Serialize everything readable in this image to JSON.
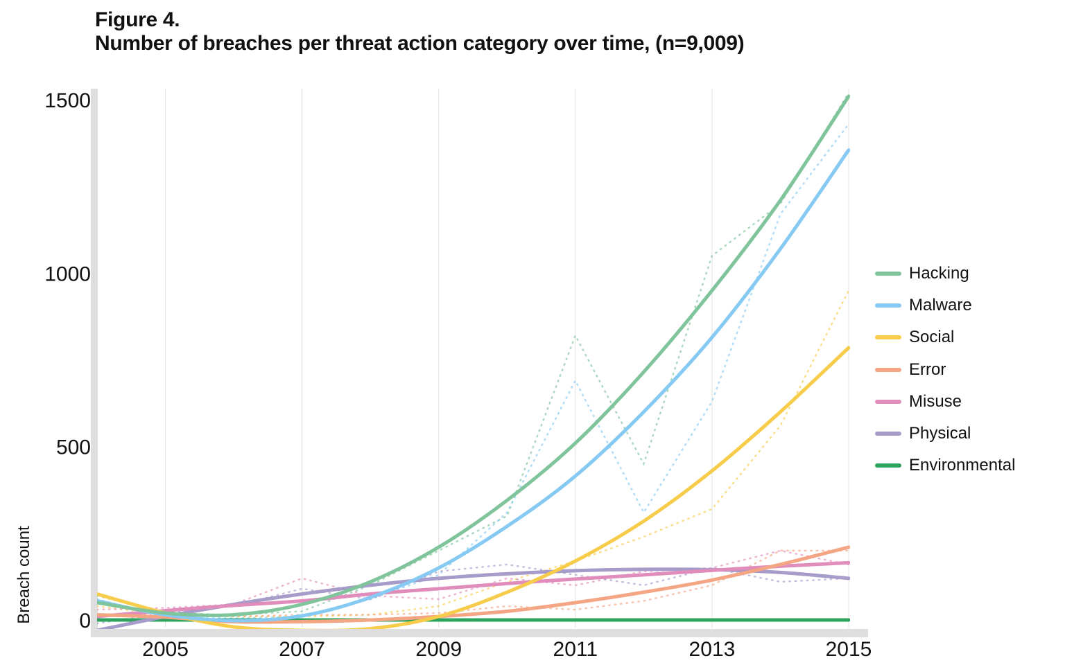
{
  "header": {
    "figure_label": "Figure 4.",
    "title": "Number of breaches per threat action category over time, (n=9,009)"
  },
  "chart_data": {
    "type": "line",
    "title": "Number of breaches per threat action category over time, (n=9,009)",
    "xlabel": "",
    "ylabel": "Breach count",
    "xlim": [
      2004,
      2015
    ],
    "ylim": [
      -30,
      1530
    ],
    "x_ticks": [
      2005,
      2007,
      2009,
      2011,
      2013,
      2015
    ],
    "y_ticks": [
      0,
      500,
      1000,
      1500
    ],
    "grid": "vertical",
    "legend_position": "right",
    "x": [
      2004,
      2005,
      2006,
      2007,
      2008,
      2009,
      2010,
      2011,
      2012,
      2013,
      2014,
      2015
    ],
    "series": [
      {
        "name": "Hacking",
        "color": "#7fc49b",
        "trend": [
          50,
          20,
          15,
          45,
          110,
          210,
          345,
          510,
          715,
          950,
          1210,
          1510
        ],
        "values": [
          70,
          20,
          15,
          25,
          100,
          200,
          300,
          820,
          450,
          1050,
          1200,
          1520
        ]
      },
      {
        "name": "Malware",
        "color": "#86c9f2",
        "trend": [
          55,
          15,
          -2,
          12,
          65,
          150,
          270,
          415,
          600,
          815,
          1070,
          1355
        ],
        "values": [
          60,
          10,
          5,
          10,
          60,
          130,
          310,
          690,
          310,
          630,
          1170,
          1430
        ]
      },
      {
        "name": "Social",
        "color": "#f7cc4a",
        "trend": [
          75,
          20,
          -20,
          -30,
          -25,
          10,
          80,
          170,
          285,
          430,
          600,
          785
        ],
        "values": [
          40,
          15,
          10,
          10,
          15,
          40,
          110,
          170,
          240,
          320,
          560,
          950
        ]
      },
      {
        "name": "Error",
        "color": "#f4a584",
        "trend": [
          15,
          8,
          -5,
          -5,
          0,
          10,
          25,
          50,
          80,
          115,
          160,
          210
        ],
        "values": [
          10,
          20,
          10,
          15,
          15,
          20,
          40,
          30,
          55,
          100,
          200,
          200
        ]
      },
      {
        "name": "Misuse",
        "color": "#e08dbb",
        "trend": [
          10,
          27,
          42,
          55,
          75,
          90,
          105,
          118,
          130,
          143,
          155,
          165
        ],
        "values": [
          30,
          35,
          45,
          120,
          70,
          60,
          120,
          100,
          140,
          150,
          200,
          160
        ]
      },
      {
        "name": "Physical",
        "color": "#a69bc9",
        "trend": [
          -30,
          10,
          45,
          75,
          100,
          120,
          133,
          142,
          146,
          145,
          137,
          120
        ],
        "values": [
          -10,
          20,
          40,
          90,
          60,
          140,
          160,
          130,
          100,
          150,
          110,
          120
        ]
      },
      {
        "name": "Environmental",
        "color": "#2ea35e",
        "trend": [
          0,
          0,
          0,
          0,
          0,
          0,
          0,
          0,
          0,
          0,
          0,
          0
        ],
        "values": [
          0,
          0,
          0,
          0,
          0,
          0,
          0,
          0,
          0,
          0,
          0,
          0
        ]
      }
    ]
  }
}
